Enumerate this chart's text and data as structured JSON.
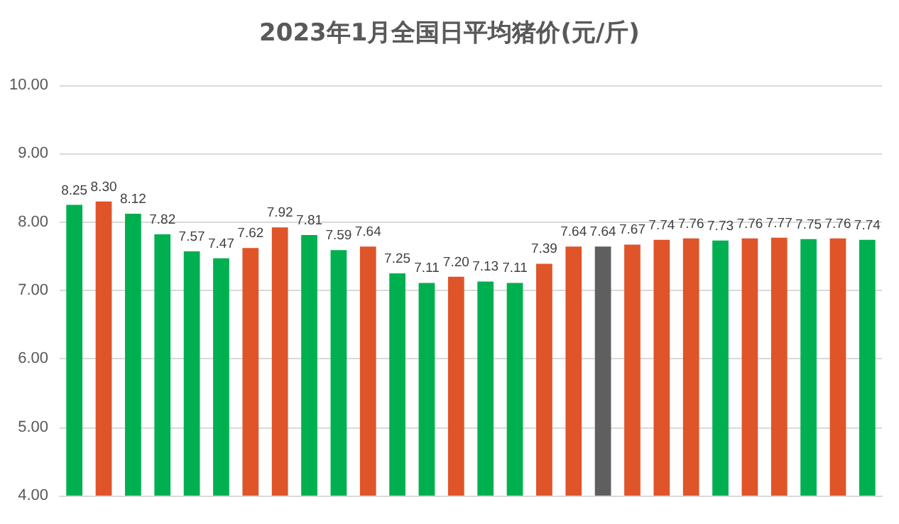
{
  "chart_data": {
    "type": "bar",
    "title": "2023年1月全国日平均猪价(元/斤)",
    "categories": [
      null,
      null,
      null,
      null,
      null,
      null,
      null,
      null,
      null,
      null,
      null,
      null,
      null,
      null,
      null,
      null,
      null,
      null,
      null,
      null,
      null,
      null,
      null,
      null,
      null,
      null,
      null,
      null
    ],
    "values": [
      8.25,
      8.3,
      8.12,
      7.82,
      7.57,
      7.47,
      7.62,
      7.92,
      7.81,
      7.59,
      7.64,
      7.25,
      7.11,
      7.2,
      7.13,
      7.11,
      7.39,
      7.64,
      7.64,
      7.67,
      7.74,
      7.76,
      7.73,
      7.76,
      7.77,
      7.75,
      7.76,
      7.74
    ],
    "colors": [
      "#00b050",
      "#e0542a",
      "#00b050",
      "#00b050",
      "#00b050",
      "#00b050",
      "#e0542a",
      "#e0542a",
      "#00b050",
      "#00b050",
      "#e0542a",
      "#00b050",
      "#00b050",
      "#e0542a",
      "#00b050",
      "#00b050",
      "#e0542a",
      "#e0542a",
      "#5f5f5f",
      "#e0542a",
      "#e0542a",
      "#e0542a",
      "#00b050",
      "#e0542a",
      "#e0542a",
      "#00b050",
      "#e0542a",
      "#00b050"
    ],
    "ylim": [
      4,
      10
    ],
    "yticks": [
      {
        "value": 4,
        "label": "4.00"
      },
      {
        "value": 5,
        "label": "5.00"
      },
      {
        "value": 6,
        "label": "6.00"
      },
      {
        "value": 7,
        "label": "7.00"
      },
      {
        "value": 8,
        "label": "8.00"
      },
      {
        "value": 9,
        "label": "9.00"
      },
      {
        "value": 10,
        "label": "10.00"
      }
    ],
    "value_labels": [
      "8.25",
      "8.30",
      "8.12",
      "7.82",
      "7.57",
      "7.47",
      "7.62",
      "7.92",
      "7.81",
      "7.59",
      "7.64",
      "7.25",
      "7.11",
      "7.20",
      "7.13",
      "7.11",
      "7.39",
      "7.64",
      "7.64",
      "7.67",
      "7.74",
      "7.76",
      "7.73",
      "7.76",
      "7.77",
      "7.75",
      "7.76",
      "7.74"
    ],
    "grid": "y"
  }
}
